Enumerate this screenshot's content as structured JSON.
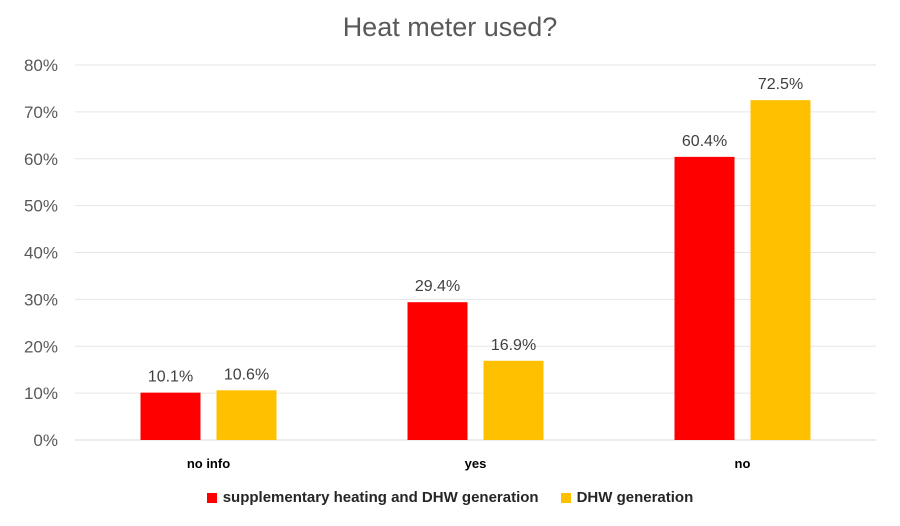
{
  "chart_data": {
    "type": "bar",
    "title": "Heat meter used?",
    "categories": [
      "no info",
      "yes",
      "no"
    ],
    "series": [
      {
        "name": "supplementary heating and DHW generation",
        "color": "#ff0000",
        "values": [
          10.1,
          29.4,
          60.4
        ]
      },
      {
        "name": "DHW generation",
        "color": "#ffc000",
        "values": [
          10.6,
          16.9,
          72.5
        ]
      }
    ],
    "yticks": [
      "0%",
      "10%",
      "20%",
      "30%",
      "40%",
      "50%",
      "60%",
      "70%",
      "80%"
    ],
    "ylim": [
      0,
      80
    ],
    "data_labels": [
      [
        "10.1%",
        "29.4%",
        "60.4%"
      ],
      [
        "10.6%",
        "16.9%",
        "72.5%"
      ]
    ],
    "xlabel": "",
    "ylabel": "",
    "legend_position": "bottom",
    "grid": true
  }
}
